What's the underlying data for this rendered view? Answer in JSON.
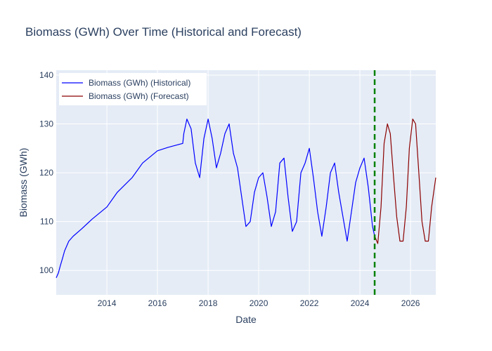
{
  "chart_data": {
    "type": "line",
    "title": "Biomass (GWh) Over Time (Historical and Forecast)",
    "xlabel": "Date",
    "ylabel": "Biomass (GWh)",
    "xlim": [
      "2012-01-01",
      "2026-12-31"
    ],
    "ylim": [
      95,
      141
    ],
    "x_ticks": [
      "2014",
      "2016",
      "2018",
      "2020",
      "2022",
      "2024",
      "2026"
    ],
    "y_ticks": [
      100,
      110,
      120,
      130,
      140
    ],
    "grid": true,
    "legend_position": "top-left",
    "forecast_start": "2024-08-01",
    "series": [
      {
        "name": "Biomass (GWh) (Historical)",
        "color": "#0000ff",
        "x": [
          "2012-01-01",
          "2012-02-01",
          "2012-03-01",
          "2012-04-01",
          "2012-05-01",
          "2012-07-01",
          "2012-09-01",
          "2013-01-01",
          "2013-06-01",
          "2014-01-01",
          "2014-06-01",
          "2015-01-01",
          "2015-06-01",
          "2016-01-01",
          "2016-06-01",
          "2016-12-31",
          "2017-01-15",
          "2017-03-01",
          "2017-05-01",
          "2017-07-01",
          "2017-09-01",
          "2017-11-01",
          "2018-01-01",
          "2018-03-01",
          "2018-05-01",
          "2018-07-01",
          "2018-09-01",
          "2018-11-01",
          "2019-01-01",
          "2019-03-01",
          "2019-05-01",
          "2019-07-01",
          "2019-09-01",
          "2019-11-01",
          "2020-01-01",
          "2020-03-01",
          "2020-05-01",
          "2020-07-01",
          "2020-09-01",
          "2020-11-01",
          "2021-01-01",
          "2021-03-01",
          "2021-05-01",
          "2021-07-01",
          "2021-09-01",
          "2021-11-01",
          "2022-01-01",
          "2022-03-01",
          "2022-05-01",
          "2022-07-01",
          "2022-09-01",
          "2022-11-01",
          "2023-01-01",
          "2023-03-01",
          "2023-05-01",
          "2023-07-01",
          "2023-09-01",
          "2023-11-01",
          "2024-01-01",
          "2024-03-01",
          "2024-05-01",
          "2024-07-01",
          "2024-08-01"
        ],
        "values": [
          98.5,
          99.5,
          101,
          102.5,
          104,
          106,
          107,
          108.5,
          110.5,
          113,
          116,
          119,
          122,
          124.5,
          125.2,
          126,
          128,
          131,
          129,
          122,
          119,
          127,
          131,
          127,
          121,
          124,
          128,
          130,
          124,
          121,
          115,
          109,
          110,
          116,
          119,
          120,
          115,
          109,
          112,
          122,
          123,
          115,
          108,
          110,
          120,
          122,
          125,
          119,
          112,
          107,
          113,
          120,
          122,
          116,
          111,
          106,
          112,
          118,
          121,
          123,
          117,
          109,
          107
        ]
      },
      {
        "name": "Biomass (GWh) (Forecast)",
        "color": "#8b0000",
        "x": [
          "2024-08-01",
          "2024-09-15",
          "2024-11-01",
          "2024-12-15",
          "2025-02-01",
          "2025-03-15",
          "2025-05-01",
          "2025-06-15",
          "2025-08-01",
          "2025-09-15",
          "2025-11-01",
          "2025-12-15",
          "2026-02-01",
          "2026-03-15",
          "2026-05-01",
          "2026-06-15",
          "2026-08-01",
          "2026-09-15",
          "2026-11-01",
          "2026-12-31"
        ],
        "values": [
          107,
          105.5,
          113,
          126,
          130,
          128,
          119,
          111,
          106,
          106,
          113,
          125,
          131,
          130,
          120,
          110,
          106,
          106,
          113,
          119
        ]
      }
    ]
  }
}
